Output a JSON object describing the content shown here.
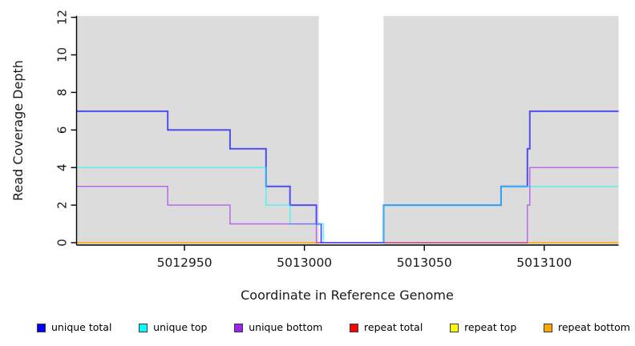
{
  "figure": {
    "background": "#FFFFFF"
  },
  "chart_data": {
    "type": "line",
    "subtype": "step",
    "title": "",
    "xlabel": "Coordinate in Reference Genome",
    "ylabel": "Read Coverage Depth",
    "xlim": [
      5012905,
      5013131
    ],
    "ylim": [
      0,
      12
    ],
    "x_ticks": [
      5012950,
      5013000,
      5013050,
      5013100
    ],
    "y_ticks": [
      0,
      2,
      4,
      6,
      8,
      10,
      12
    ],
    "grid": false,
    "legend_position": "bottom",
    "shaded_regions": {
      "color": "#DCDCDC",
      "ranges": [
        [
          5012905,
          5013006
        ],
        [
          5013033,
          5013131
        ]
      ]
    },
    "line_alpha": 0.65,
    "series": [
      {
        "name": "unique total",
        "color": "#0000FF",
        "width": 2.0,
        "z": 4,
        "steps": [
          [
            5012905,
            7
          ],
          [
            5012943,
            6
          ],
          [
            5012969,
            5
          ],
          [
            5012984,
            3
          ],
          [
            5012994,
            2
          ],
          [
            5013005,
            1
          ],
          [
            5013007,
            0
          ],
          [
            5013033,
            2
          ],
          [
            5013082,
            3
          ],
          [
            5013093,
            5
          ],
          [
            5013094,
            7
          ],
          [
            5013131,
            7
          ]
        ]
      },
      {
        "name": "unique top",
        "color": "#00FFFF",
        "width": 1.4,
        "z": 5,
        "steps": [
          [
            5012905,
            4
          ],
          [
            5012984,
            2
          ],
          [
            5012994,
            1
          ],
          [
            5013008,
            0
          ],
          [
            5013033,
            2
          ],
          [
            5013082,
            3
          ],
          [
            5013131,
            3
          ]
        ]
      },
      {
        "name": "unique bottom",
        "color": "#A020F0",
        "width": 1.4,
        "z": 6,
        "steps": [
          [
            5012905,
            3
          ],
          [
            5012943,
            2
          ],
          [
            5012969,
            1
          ],
          [
            5013005,
            0
          ],
          [
            5013093,
            2
          ],
          [
            5013094,
            4
          ],
          [
            5013131,
            4
          ]
        ]
      },
      {
        "name": "repeat total",
        "color": "#FF0000",
        "width": 1.2,
        "z": 1,
        "steps": [
          [
            5012905,
            0
          ],
          [
            5013131,
            0
          ]
        ]
      },
      {
        "name": "repeat top",
        "color": "#FFFF00",
        "width": 1.2,
        "z": 2,
        "steps": [
          [
            5012905,
            0
          ],
          [
            5013131,
            0
          ]
        ]
      },
      {
        "name": "repeat bottom",
        "color": "#FFA500",
        "width": 1.5,
        "z": 3,
        "steps": [
          [
            5012905,
            0
          ],
          [
            5013131,
            0
          ]
        ]
      }
    ],
    "legend": [
      {
        "label": "unique total",
        "color": "#0000FF"
      },
      {
        "label": "unique top",
        "color": "#00FFFF"
      },
      {
        "label": "unique bottom",
        "color": "#A020F0"
      },
      {
        "label": "repeat total",
        "color": "#FF0000"
      },
      {
        "label": "repeat top",
        "color": "#FFFF00"
      },
      {
        "label": "repeat bottom",
        "color": "#FFA500"
      }
    ]
  }
}
